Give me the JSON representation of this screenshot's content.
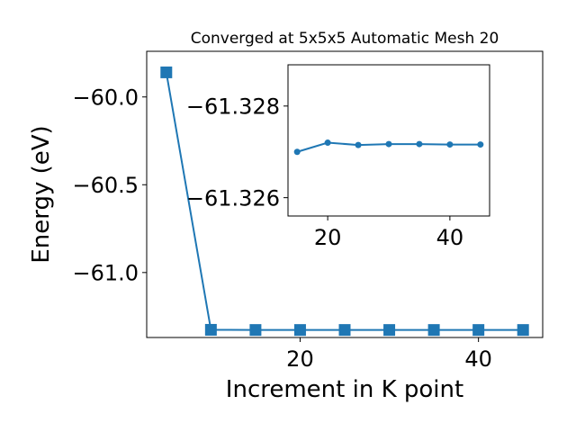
{
  "chart_data": [
    {
      "type": "line",
      "title": "Converged at 5x5x5 Automatic Mesh 20",
      "xlabel": "Increment in K point",
      "ylabel": "Energy (eV)",
      "xlim": [
        2.8,
        47.2
      ],
      "ylim": [
        -61.37,
        -59.74
      ],
      "xticks": [
        20,
        40
      ],
      "yticks": [
        -60.0,
        -60.5,
        -61.0
      ],
      "xtick_labels": [
        "20",
        "40"
      ],
      "ytick_labels": [
        "−60.0",
        "−60.5",
        "−61.0"
      ],
      "marker": "square",
      "color": "#1f77b4",
      "grid": false,
      "series": [
        {
          "x": [
            5,
            10,
            15,
            20,
            25,
            30,
            35,
            40,
            45
          ],
          "y": [
            -59.86,
            -61.3262,
            -61.3272,
            -61.3272,
            -61.3271,
            -61.3272,
            -61.3272,
            -61.3272,
            -61.3272
          ]
        }
      ]
    },
    {
      "type": "line",
      "title": "",
      "xlabel": "",
      "ylabel": "",
      "xlim": [
        13.5,
        46.5
      ],
      "ylim": [
        -61.3256,
        -61.3289
      ],
      "xticks": [
        20,
        40
      ],
      "yticks": [
        -61.328,
        -61.326
      ],
      "xtick_labels": [
        "20",
        "40"
      ],
      "ytick_labels": [
        "−61.328",
        "−61.326"
      ],
      "marker": "circle",
      "color": "#1f77b4",
      "grid": false,
      "series": [
        {
          "x": [
            15,
            20,
            25,
            30,
            35,
            40,
            45
          ],
          "y": [
            -61.327,
            -61.3272,
            -61.32715,
            -61.32717,
            -61.32717,
            -61.32716,
            -61.32716
          ]
        }
      ]
    }
  ]
}
